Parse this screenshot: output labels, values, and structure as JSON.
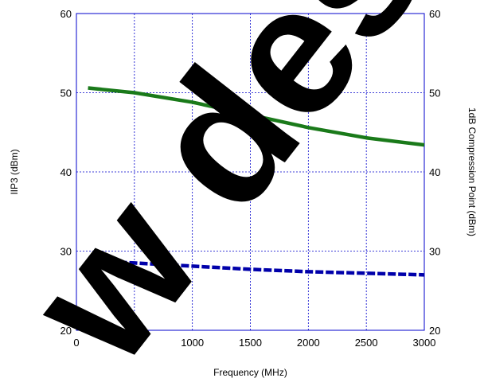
{
  "chart_data": {
    "type": "line",
    "xlabel": "Frequency (MHz)",
    "ylabel": "IIP3 (dBm)",
    "y2label": "1dB Compression Point (dBm)",
    "xlim": [
      0,
      3000
    ],
    "ylim": [
      20,
      60
    ],
    "y2lim": [
      20,
      60
    ],
    "xticks": [
      0,
      500,
      1000,
      1500,
      2000,
      2500,
      3000
    ],
    "yticks": [
      20,
      30,
      40,
      50,
      60
    ],
    "y2ticks": [
      20,
      30,
      40,
      50,
      60
    ],
    "grid": true,
    "series": [
      {
        "axis": "left",
        "style": "solid",
        "color": "#1a7a1a",
        "x": [
          100,
          500,
          1000,
          1500,
          2000,
          2500,
          3000
        ],
        "y": [
          50.6,
          50.0,
          48.8,
          47.2,
          45.6,
          44.3,
          43.4
        ]
      },
      {
        "axis": "right",
        "style": "dashed",
        "color": "#0000aa",
        "x": [
          100,
          500,
          1000,
          1500,
          2000,
          2500,
          3000
        ],
        "y": [
          28.8,
          28.5,
          28.1,
          27.7,
          27.4,
          27.2,
          27.0
        ]
      }
    ]
  },
  "watermark": {
    "text": "w design",
    "color": "#000000"
  },
  "colors": {
    "grid": "#0000cc",
    "frame": "#0000cc"
  }
}
